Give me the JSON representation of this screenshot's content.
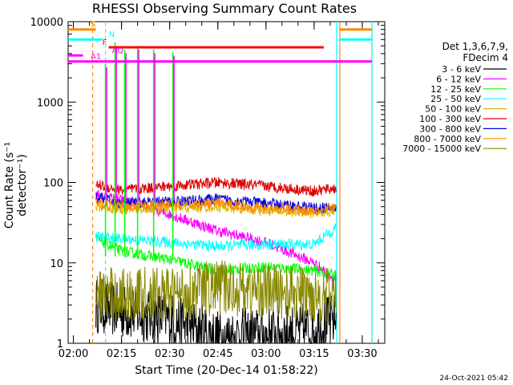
{
  "chart_data": {
    "type": "line",
    "title": "RHESSI Observing Summary Count Rates",
    "xlabel": "Start Time (20-Dec-14 01:58:22)",
    "ylabel": "Count Rate (s⁻¹ detector⁻¹)",
    "yscale": "log",
    "ylim": [
      1,
      10000
    ],
    "xlim": [
      "01:58:22",
      "03:37:00"
    ],
    "x_ticks": [
      "02:00",
      "02:15",
      "02:30",
      "02:45",
      "03:00",
      "03:15",
      "03:30"
    ],
    "y_ticks": [
      "1",
      "10",
      "100",
      "1000",
      "10000"
    ],
    "legend_header": [
      "Det 1,3,6,7,9,",
      "FDecim 4"
    ],
    "series": [
      {
        "name": "3 - 6 keV",
        "color": "#000000",
        "x": [
          "02:07",
          "02:15",
          "02:30",
          "02:45",
          "03:00",
          "03:15",
          "03:22"
        ],
        "values": [
          3,
          2.5,
          2,
          1.2,
          1.3,
          1.5,
          2
        ]
      },
      {
        "name": "6 - 12 keV",
        "color": "#ff00ff",
        "x": [
          "02:07",
          "02:15",
          "02:30",
          "02:45",
          "03:00",
          "03:15",
          "03:22"
        ],
        "values": [
          70,
          60,
          40,
          25,
          18,
          10,
          6
        ]
      },
      {
        "name": "12 - 25 keV",
        "color": "#00ff00",
        "x": [
          "02:07",
          "02:15",
          "02:30",
          "02:45",
          "03:00",
          "03:15",
          "03:22"
        ],
        "values": [
          20,
          14,
          11,
          8,
          9,
          8,
          7
        ]
      },
      {
        "name": "25 - 50 keV",
        "color": "#00ffff",
        "x": [
          "02:07",
          "02:15",
          "02:30",
          "02:45",
          "03:00",
          "03:15",
          "03:22"
        ],
        "values": [
          21,
          20,
          18,
          16,
          17,
          17,
          28
        ]
      },
      {
        "name": "50 - 100 keV",
        "color": "#ddbb00",
        "x": [
          "02:07",
          "02:15",
          "02:30",
          "02:45",
          "03:00",
          "03:15",
          "03:22"
        ],
        "values": [
          50,
          47,
          48,
          50,
          45,
          42,
          45
        ]
      },
      {
        "name": "100 - 300 keV",
        "color": "#dd0000",
        "x": [
          "02:07",
          "02:15",
          "02:30",
          "02:45",
          "03:00",
          "03:15",
          "03:22"
        ],
        "values": [
          95,
          80,
          90,
          100,
          90,
          78,
          85
        ]
      },
      {
        "name": "300 - 800 keV",
        "color": "#0000dd",
        "x": [
          "02:07",
          "02:15",
          "02:30",
          "02:45",
          "03:00",
          "03:15",
          "03:22"
        ],
        "values": [
          65,
          55,
          58,
          62,
          55,
          48,
          48
        ]
      },
      {
        "name": "800 - 7000 keV",
        "color": "#ff8800",
        "x": [
          "02:07",
          "02:15",
          "02:30",
          "02:45",
          "03:00",
          "03:15",
          "03:22"
        ],
        "values": [
          55,
          50,
          52,
          55,
          48,
          45,
          48
        ]
      },
      {
        "name": "7000 - 15000 keV",
        "color": "#888800",
        "x": [
          "02:07",
          "02:15",
          "02:30",
          "02:45",
          "03:00",
          "03:15",
          "03:22"
        ],
        "values": [
          4,
          4,
          4,
          5,
          4.5,
          4,
          4
        ]
      }
    ],
    "spikes": [
      {
        "x": "02:10",
        "peak": 3000,
        "color": "#00ff00"
      },
      {
        "x": "02:13",
        "peak": 5500,
        "color": "#00ff00"
      },
      {
        "x": "02:16",
        "peak": 4500,
        "color": "#00ff00"
      },
      {
        "x": "02:20",
        "peak": 5000,
        "color": "#00ff00"
      },
      {
        "x": "02:25",
        "peak": 4500,
        "color": "#00ff00"
      },
      {
        "x": "02:31",
        "peak": 4200,
        "color": "#00ff00"
      }
    ],
    "flag_bars": [
      {
        "label": "S",
        "color": "#ff8800",
        "y": 8000,
        "segments": [
          [
            "01:58:22",
            "02:07"
          ],
          [
            "03:23",
            "03:33"
          ]
        ]
      },
      {
        "label": "N",
        "color": "#00ffff",
        "y": 6000,
        "segments": [
          [
            "01:58:22",
            "02:09"
          ],
          [
            "03:23",
            "03:33"
          ]
        ]
      },
      {
        "label": "F",
        "color": "#ff0000",
        "y": 4800,
        "segments": [
          [
            "02:11",
            "03:18"
          ]
        ]
      },
      {
        "label": "AQ",
        "color": "#ff00ff",
        "y": 3800,
        "segments": [
          [
            "01:58:22",
            "02:03"
          ]
        ]
      },
      {
        "label": "A1",
        "color": "#ff00ff",
        "y": 3200,
        "segments": [
          [
            "01:58:22",
            "03:33"
          ]
        ]
      }
    ],
    "vertical_lines": [
      {
        "x": "02:06",
        "color": "#ff8800",
        "style": "dashed"
      },
      {
        "x": "02:10",
        "color": "#00ffff",
        "style": "dashed"
      },
      {
        "x": "03:22",
        "color": "#00ffff",
        "style": "solid"
      },
      {
        "x": "03:23",
        "color": "#ff8800",
        "style": "solid"
      },
      {
        "x": "03:33",
        "color": "#ff8800",
        "style": "dashed"
      },
      {
        "x": "03:33",
        "color": "#00ffff",
        "style": "solid"
      }
    ]
  },
  "datestamp": "24-Oct-2021 05:42"
}
